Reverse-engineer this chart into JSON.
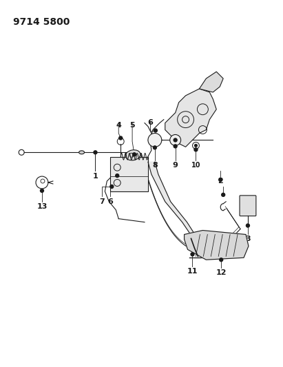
{
  "title": "9714 5800",
  "background_color": "#ffffff",
  "line_color": "#1a1a1a",
  "title_fontsize": 10,
  "label_fontsize": 8,
  "figsize": [
    4.11,
    5.33
  ],
  "dpi": 100
}
